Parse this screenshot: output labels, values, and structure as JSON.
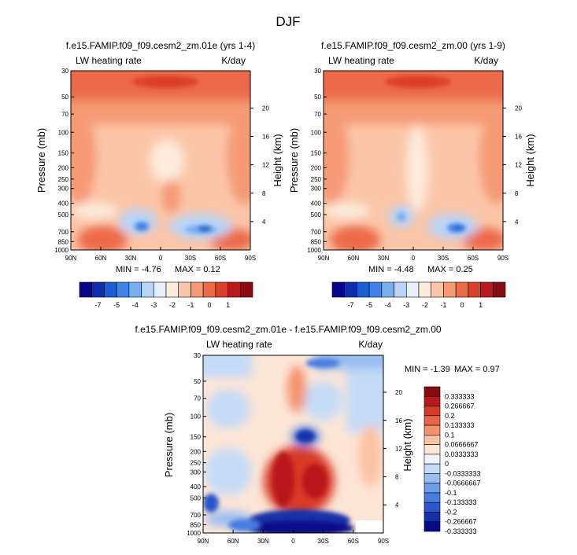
{
  "page": {
    "main_title": "DJF"
  },
  "palettes": {
    "full": [
      "#08068b",
      "#0b2fb0",
      "#1a5fd6",
      "#3f84e8",
      "#7aaef2",
      "#b7d4f8",
      "#e6f0fb",
      "#fdebdc",
      "#fbc6a8",
      "#f59a75",
      "#ec6a48",
      "#d9402a",
      "#b9191b",
      "#8a0c12"
    ],
    "full_labels": [
      "-7",
      "-5",
      "-4",
      "-3",
      "-2",
      "-1",
      "0",
      "1"
    ],
    "diff": [
      "#8a0c12",
      "#b9191b",
      "#d63a28",
      "#ea6445",
      "#f5926c",
      "#fbc2a4",
      "#fde6d6",
      "#eef4fc",
      "#c4dbf7",
      "#98bef2",
      "#6c9eec",
      "#4a7de0",
      "#2b57cc",
      "#1530a8",
      "#080a8a"
    ],
    "diff_labels": [
      "0.333333",
      "0.266667",
      "0.2",
      "0.133333",
      "0.1",
      "0.0666667",
      "0.0333333",
      "0",
      "-0.0333333",
      "-0.0666667",
      "-0.1",
      "-0.133333",
      "-0.2",
      "-0.266667",
      "-0.333333"
    ]
  },
  "chart_data": [
    {
      "type": "heatmap",
      "title": "f.e15.FAMIP.f09_f09.cesm2_zm.01e (yrs 1-4)",
      "left_label": "LW heating rate",
      "right_label": "K/day",
      "ylabel": "Pressure (mb)",
      "y2label": "Height (km)",
      "x_ticks": [
        "90N",
        "60N",
        "30N",
        "0",
        "30S",
        "60S",
        "90S"
      ],
      "y_ticks": [
        "30",
        "50",
        "70",
        "100",
        "150",
        "200",
        "250",
        "300",
        "400",
        "500",
        "700",
        "850",
        "1000"
      ],
      "y2_ticks": [
        "20",
        "16",
        "12",
        "8",
        "4"
      ],
      "stats": {
        "min": "MIN = -4.76",
        "max": "MAX =  0.12"
      }
    },
    {
      "type": "heatmap",
      "title": "f.e15.FAMIP.f09_f09.cesm2_zm.00 (yrs 1-9)",
      "left_label": "LW heating rate",
      "right_label": "K/day",
      "ylabel": "Pressure (mb)",
      "y2label": "Height (km)",
      "x_ticks": [
        "90N",
        "60N",
        "30N",
        "0",
        "30S",
        "60S",
        "90S"
      ],
      "y_ticks": [
        "30",
        "50",
        "70",
        "100",
        "150",
        "200",
        "250",
        "300",
        "400",
        "500",
        "700",
        "850",
        "1000"
      ],
      "y2_ticks": [
        "20",
        "16",
        "12",
        "8",
        "4"
      ],
      "stats": {
        "min": "MIN = -4.48",
        "max": "MAX =  0.25"
      }
    },
    {
      "type": "heatmap",
      "title": "f.e15.FAMIP.f09_f09.cesm2_zm.01e - f.e15.FAMIP.f09_f09.cesm2_zm.00",
      "left_label": "LW heating rate",
      "right_label": "K/day",
      "ylabel": "Pressure (mb)",
      "y2label": "Height (km)",
      "x_ticks": [
        "90N",
        "60N",
        "30N",
        "0",
        "30S",
        "60S",
        "90S"
      ],
      "y_ticks": [
        "30",
        "50",
        "70",
        "100",
        "150",
        "200",
        "250",
        "300",
        "400",
        "500",
        "700",
        "850",
        "1000"
      ],
      "y2_ticks": [
        "20",
        "16",
        "12",
        "8",
        "4"
      ],
      "stats": {
        "min": "MIN = -1.39",
        "max": "MAX =  0.97"
      }
    }
  ]
}
